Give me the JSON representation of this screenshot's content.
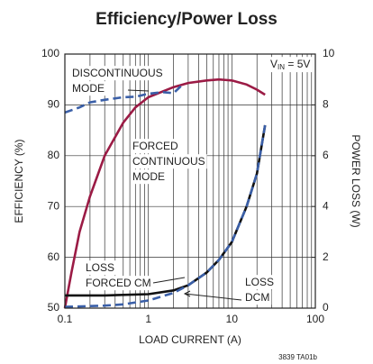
{
  "chart_data": {
    "type": "line",
    "title": "Efficiency/Power Loss",
    "xlabel": "LOAD CURRENT (A)",
    "ylabel": "EFFICIENCY (%)",
    "y2label": "POWER LOSS (W)",
    "xscale": "log",
    "xlim": [
      0.1,
      100
    ],
    "xticks": [
      0.1,
      1,
      10,
      100
    ],
    "ylim": [
      50,
      100
    ],
    "yticks": [
      50,
      60,
      70,
      80,
      90,
      100
    ],
    "y2lim": [
      0,
      10
    ],
    "y2ticks": [
      0,
      2,
      4,
      6,
      8,
      10
    ],
    "grid": true,
    "series": [
      {
        "label_lines": [
          "FORCED",
          "CONTINUOUS",
          "MODE"
        ],
        "color": "#9b1b45",
        "dash": false,
        "x": [
          0.1,
          0.12,
          0.15,
          0.2,
          0.3,
          0.5,
          0.7,
          1,
          2,
          3,
          5,
          7,
          10,
          15,
          20,
          25
        ],
        "values": [
          50,
          57,
          65,
          72,
          80,
          86.5,
          89.5,
          91.5,
          93.5,
          94.3,
          94.8,
          95,
          94.8,
          94,
          93,
          92
        ]
      },
      {
        "label_lines": [
          "DISCONTINUOUS",
          "MODE"
        ],
        "color": "#3a5fa8",
        "dash": true,
        "x": [
          0.1,
          0.15,
          0.2,
          0.3,
          0.5,
          0.7,
          1,
          1.5,
          2,
          2.5
        ],
        "values": [
          88.5,
          89.5,
          90.5,
          91,
          91.5,
          91.6,
          92.2,
          92.5,
          92.3,
          93.8
        ]
      },
      {
        "label_lines": [
          "LOSS",
          "FORCED CM"
        ],
        "color": "#111111",
        "dash": false,
        "axis": "y2",
        "x": [
          0.1,
          0.3,
          1,
          2,
          3,
          5,
          7,
          10,
          15,
          20,
          25
        ],
        "values": [
          0.5,
          0.5,
          0.55,
          0.7,
          0.9,
          1.4,
          1.9,
          2.6,
          4,
          5.3,
          7.2
        ]
      },
      {
        "label_lines": [
          "LOSS",
          "DCM"
        ],
        "color": "#3a5fa8",
        "dash": true,
        "axis": "y2",
        "x": [
          0.1,
          0.3,
          0.5,
          1,
          2,
          3,
          5,
          7,
          10,
          15,
          20,
          25
        ],
        "values": [
          0.05,
          0.1,
          0.15,
          0.3,
          0.6,
          0.9,
          1.4,
          1.9,
          2.6,
          4,
          5.3,
          7.2
        ]
      }
    ],
    "vin_label": [
      "V",
      "IN",
      " = 5V"
    ],
    "footnote": "3839 TA01b"
  }
}
